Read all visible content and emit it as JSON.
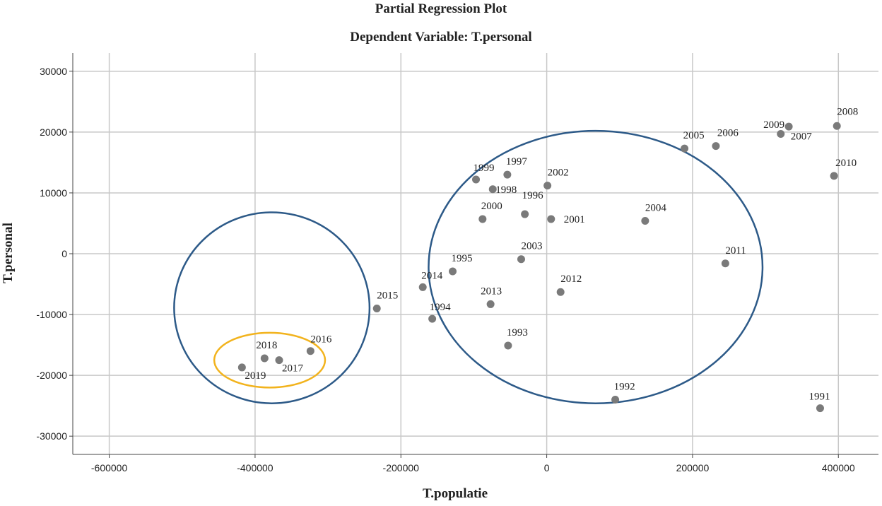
{
  "chart_data": {
    "type": "scatter",
    "title": "Partial Regression Plot",
    "subtitle": "Dependent Variable: T.personal",
    "xlabel": "T.populatie",
    "ylabel": "T.personal",
    "xlim": [
      -650000,
      455000
    ],
    "ylim": [
      -33000,
      33000
    ],
    "xticks": [
      -600000,
      -400000,
      -200000,
      0,
      200000,
      400000
    ],
    "yticks": [
      30000,
      20000,
      10000,
      0,
      -10000,
      -20000,
      -30000
    ],
    "grid": true,
    "point_color": "#7a7a7a",
    "points": [
      {
        "label": "1991",
        "x": 375000,
        "y": -25400
      },
      {
        "label": "1992",
        "x": 94000,
        "y": -24000
      },
      {
        "label": "1993",
        "x": -53000,
        "y": -15100
      },
      {
        "label": "1994",
        "x": -157000,
        "y": -10700
      },
      {
        "label": "1995",
        "x": -129000,
        "y": -2900
      },
      {
        "label": "1996",
        "x": -30000,
        "y": 6500
      },
      {
        "label": "1997",
        "x": -54000,
        "y": 13000
      },
      {
        "label": "1998",
        "x": -74000,
        "y": 10600
      },
      {
        "label": "1999",
        "x": -97000,
        "y": 12200
      },
      {
        "label": "2000",
        "x": -88000,
        "y": 5700
      },
      {
        "label": "2001",
        "x": 6000,
        "y": 5700
      },
      {
        "label": "2002",
        "x": 1000,
        "y": 11200
      },
      {
        "label": "2003",
        "x": -35000,
        "y": -900
      },
      {
        "label": "2004",
        "x": 135000,
        "y": 5400
      },
      {
        "label": "2005",
        "x": 189000,
        "y": 17300
      },
      {
        "label": "2006",
        "x": 232000,
        "y": 17700
      },
      {
        "label": "2007",
        "x": 321000,
        "y": 19700
      },
      {
        "label": "2008",
        "x": 398000,
        "y": 21000
      },
      {
        "label": "2009",
        "x": 332000,
        "y": 20900
      },
      {
        "label": "2010",
        "x": 394000,
        "y": 12800
      },
      {
        "label": "2011",
        "x": 245000,
        "y": -1600
      },
      {
        "label": "2012",
        "x": 19000,
        "y": -6300
      },
      {
        "label": "2013",
        "x": -77000,
        "y": -8300
      },
      {
        "label": "2014",
        "x": -170000,
        "y": -5500
      },
      {
        "label": "2015",
        "x": -233000,
        "y": -9000
      },
      {
        "label": "2016",
        "x": -324000,
        "y": -16000
      },
      {
        "label": "2017",
        "x": -367000,
        "y": -17500
      },
      {
        "label": "2018",
        "x": -387000,
        "y": -17200
      },
      {
        "label": "2019",
        "x": -418000,
        "y": -18700
      }
    ],
    "annotations": [
      {
        "shape": "ellipse",
        "color": "#2d5a88",
        "cx": 67000,
        "cy": -2200,
        "rx": 229000,
        "ry": 22400
      },
      {
        "shape": "ellipse",
        "color": "#2d5a88",
        "cx": -377000,
        "cy": -8900,
        "rx": 134000,
        "ry": 15700
      },
      {
        "shape": "ellipse",
        "color": "#f2b31d",
        "cx": -380000,
        "cy": -17500,
        "rx": 76000,
        "ry": 4500
      }
    ]
  }
}
